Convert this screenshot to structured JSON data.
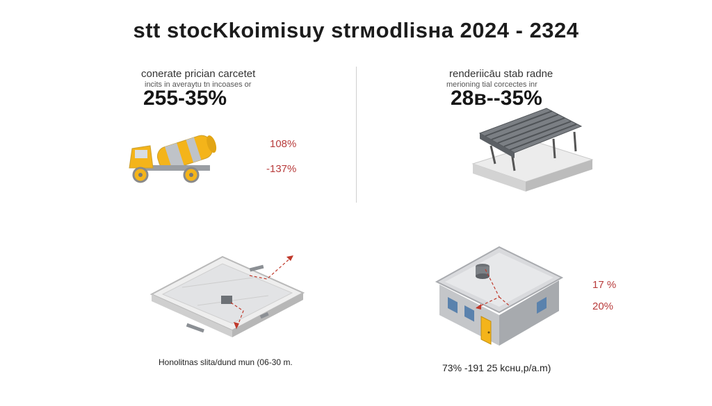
{
  "title": "stt stocKkoimisuy strмodlisнa 2024 - 2324",
  "panel_concrete": {
    "subtitle": "conerate prician carcetet",
    "note": "incits in averaytu tn incoases or",
    "range": "255-35%",
    "stat_a": "108%",
    "stat_b": "-137%"
  },
  "panel_rebar": {
    "subtitle": "renderiicāu stab radne",
    "note": "merioning tial corcectes inr",
    "range": "28в--35%"
  },
  "panel_slab": {
    "caption": "Honolitnas slita/dund mun (06-30 m."
  },
  "panel_house": {
    "stat_a": "17 %",
    "stat_b": "20%",
    "caption": "73% -191 25 kcнu,p/a.m)"
  },
  "colors": {
    "accent_yellow": "#f4b41a",
    "red_annotation": "#c0392b",
    "gray_structure": "#9a9ea3",
    "light_gray": "#e6e7e9"
  }
}
